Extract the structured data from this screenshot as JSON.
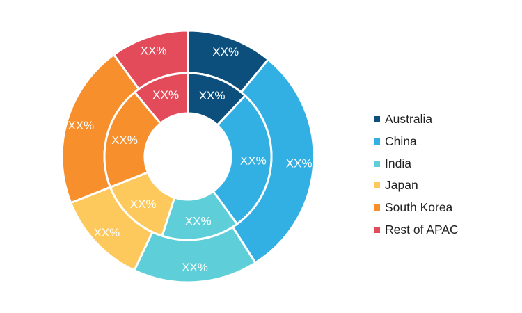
{
  "chart_data": {
    "type": "pie",
    "subtype": "double-donut",
    "categories": [
      "Australia",
      "China",
      "India",
      "Japan",
      "South Korea",
      "Rest of APAC"
    ],
    "colors": [
      "#0c4f7c",
      "#32b0e4",
      "#5ecfd8",
      "#fdc95c",
      "#f78f2d",
      "#e34b5a"
    ],
    "series": [
      {
        "ring": "outer",
        "values": [
          11,
          30,
          16,
          12,
          21,
          10
        ],
        "labels": [
          "XX%",
          "XX%",
          "XX%",
          "XX%",
          "XX%",
          "XX%"
        ]
      },
      {
        "ring": "inner",
        "values": [
          12,
          28,
          15,
          14,
          20,
          11
        ],
        "labels": [
          "XX%",
          "XX%",
          "XX%",
          "XX%",
          "XX%",
          "XX%"
        ]
      }
    ],
    "legend": {
      "position": "right",
      "items": [
        "Australia",
        "China",
        "India",
        "Japan",
        "South Korea",
        "Rest of APAC"
      ]
    },
    "start_angle": "top",
    "direction": "clockwise"
  }
}
